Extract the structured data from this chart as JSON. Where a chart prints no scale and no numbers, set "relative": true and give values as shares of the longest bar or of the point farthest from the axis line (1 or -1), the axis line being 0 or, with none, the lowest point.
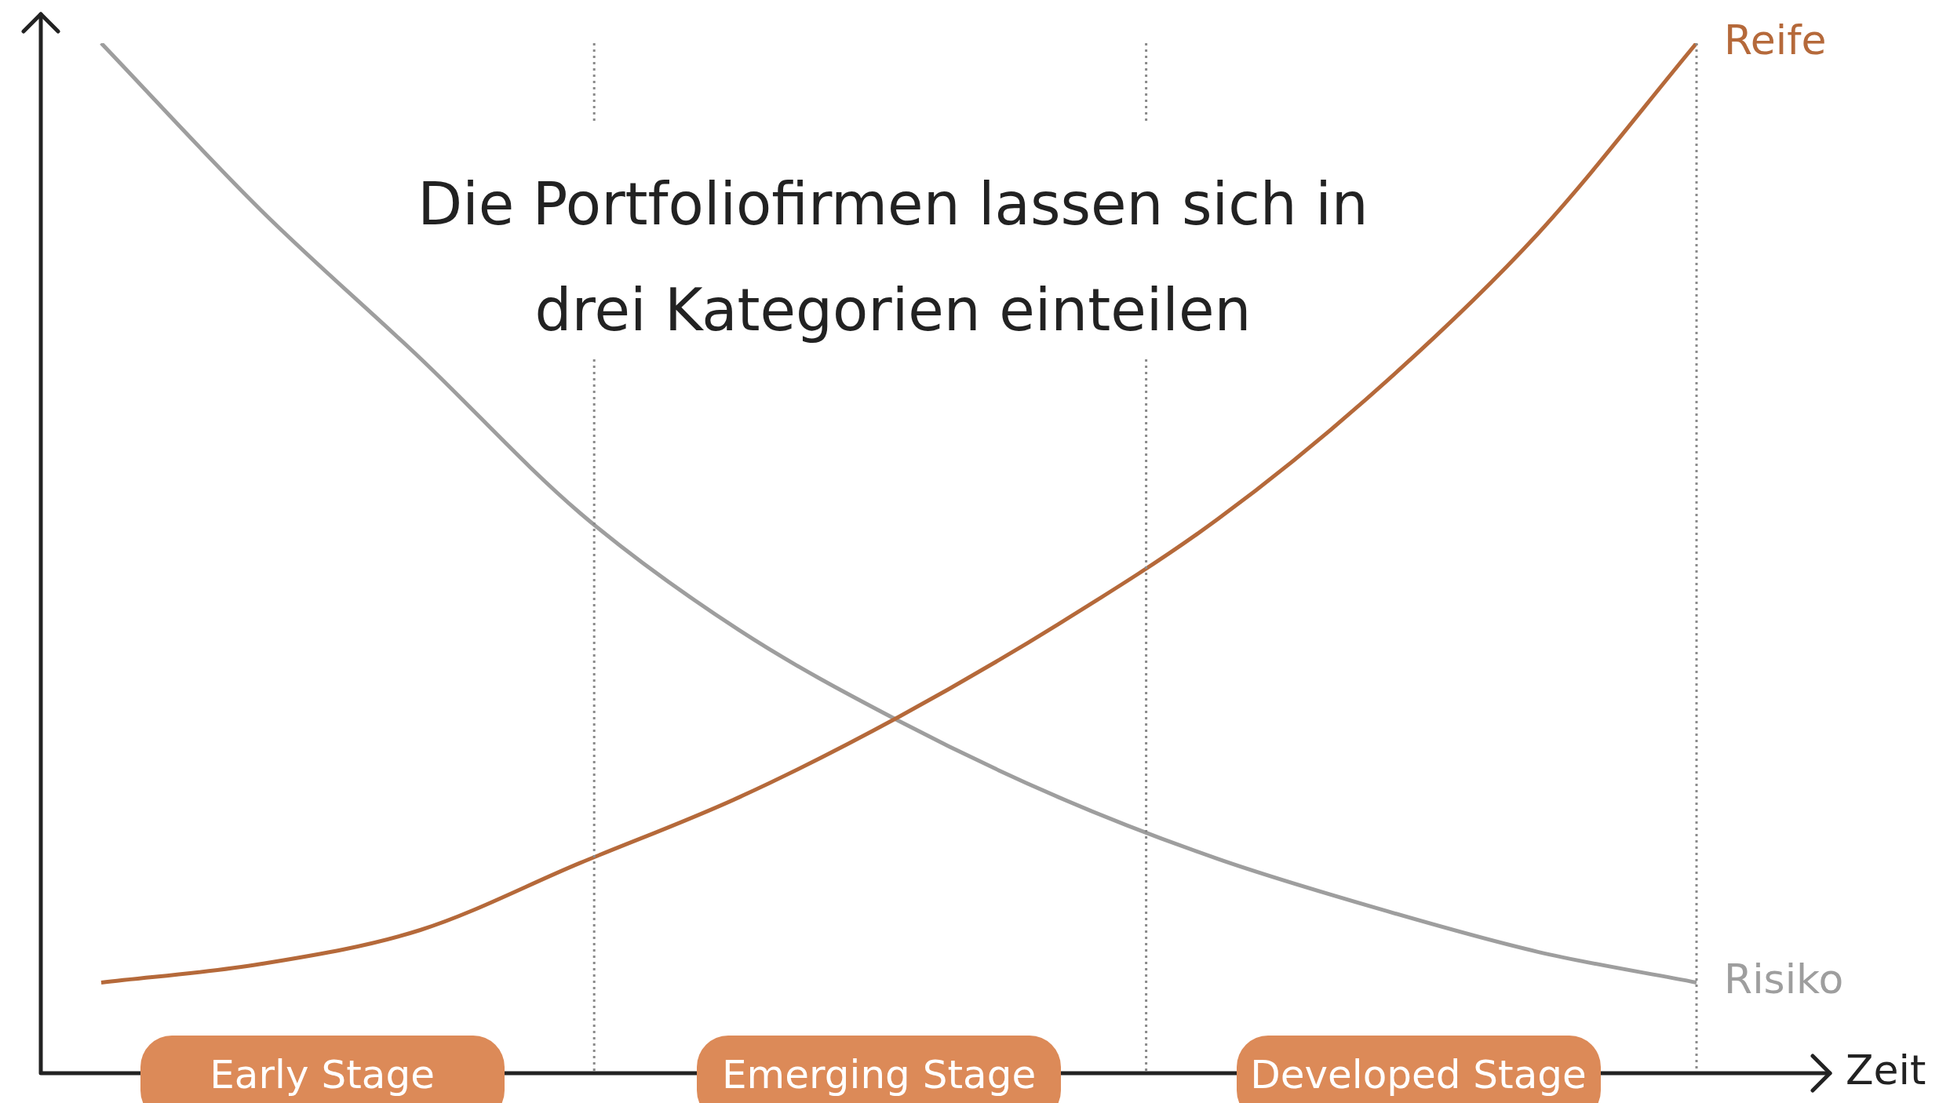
{
  "chart_data": {
    "type": "line",
    "title": "Die Portfoliofirmen lassen sich in drei Kategorien einteilen",
    "xlabel": "Zeit",
    "relative": true,
    "categories": [
      null,
      null,
      null,
      null,
      null,
      null,
      null,
      null,
      null,
      null,
      null
    ],
    "series": [
      {
        "name": "Reife",
        "color": "#b5693a",
        "values": [
          0.088,
          0.106,
          0.139,
          0.204,
          0.268,
          0.346,
          0.436,
          0.538,
          0.664,
          0.814,
          1.0
        ]
      },
      {
        "name": "Risiko",
        "color": "#9e9e9e",
        "values": [
          1.0,
          0.838,
          0.694,
          0.544,
          0.43,
          0.342,
          0.268,
          0.208,
          0.16,
          0.118,
          0.088
        ]
      }
    ],
    "annotations": [
      "Early Stage",
      "Emerging Stage",
      "Developed Stage"
    ],
    "legend": false,
    "marker": "none",
    "line_style": "solid"
  }
}
